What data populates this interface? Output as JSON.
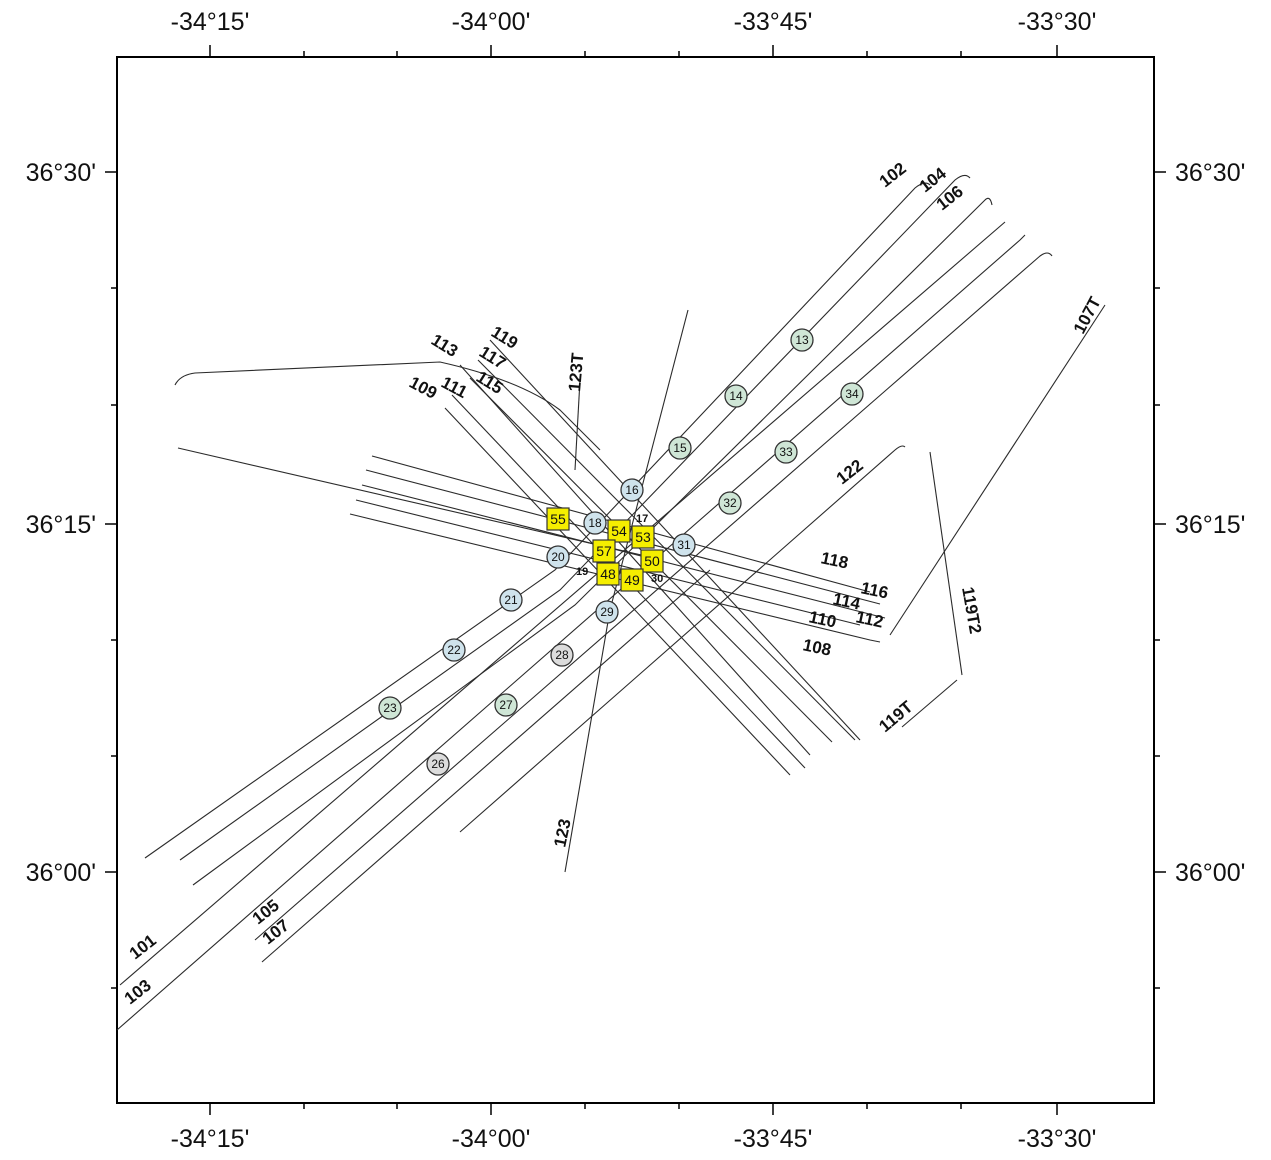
{
  "map": {
    "axes": {
      "top_labels": [
        "-34°15'",
        "-34°00'",
        "-33°45'",
        "-33°30'"
      ],
      "bottom_labels": [
        "-34°15'",
        "-34°00'",
        "-33°45'",
        "-33°30'"
      ],
      "left_labels": [
        "36°30'",
        "36°15'",
        "36°00'"
      ],
      "right_labels": [
        "36°30'",
        "36°15'",
        "36°00'"
      ]
    },
    "track_labels": [
      "101",
      "102",
      "103",
      "104",
      "105",
      "106",
      "107",
      "107T",
      "108",
      "109",
      "110",
      "111",
      "112",
      "113",
      "114",
      "115",
      "116",
      "117",
      "118",
      "119",
      "119T",
      "119T2",
      "122",
      "123",
      "123T"
    ],
    "circle_stations": [
      "13",
      "14",
      "15",
      "16",
      "18",
      "20",
      "21",
      "22",
      "23",
      "26",
      "27",
      "28",
      "29",
      "31",
      "32",
      "33",
      "34"
    ],
    "small_labels": [
      "17",
      "19",
      "30"
    ],
    "square_stations": [
      "55",
      "54",
      "53",
      "57",
      "50",
      "48",
      "49"
    ],
    "colors": {
      "circle_fill_blue": "#cfe3ec",
      "circle_fill_green": "#cfe6d6",
      "circle_fill_gray": "#dcdcdc",
      "square_fill": "#f5ee00",
      "frame": "#000000"
    }
  }
}
